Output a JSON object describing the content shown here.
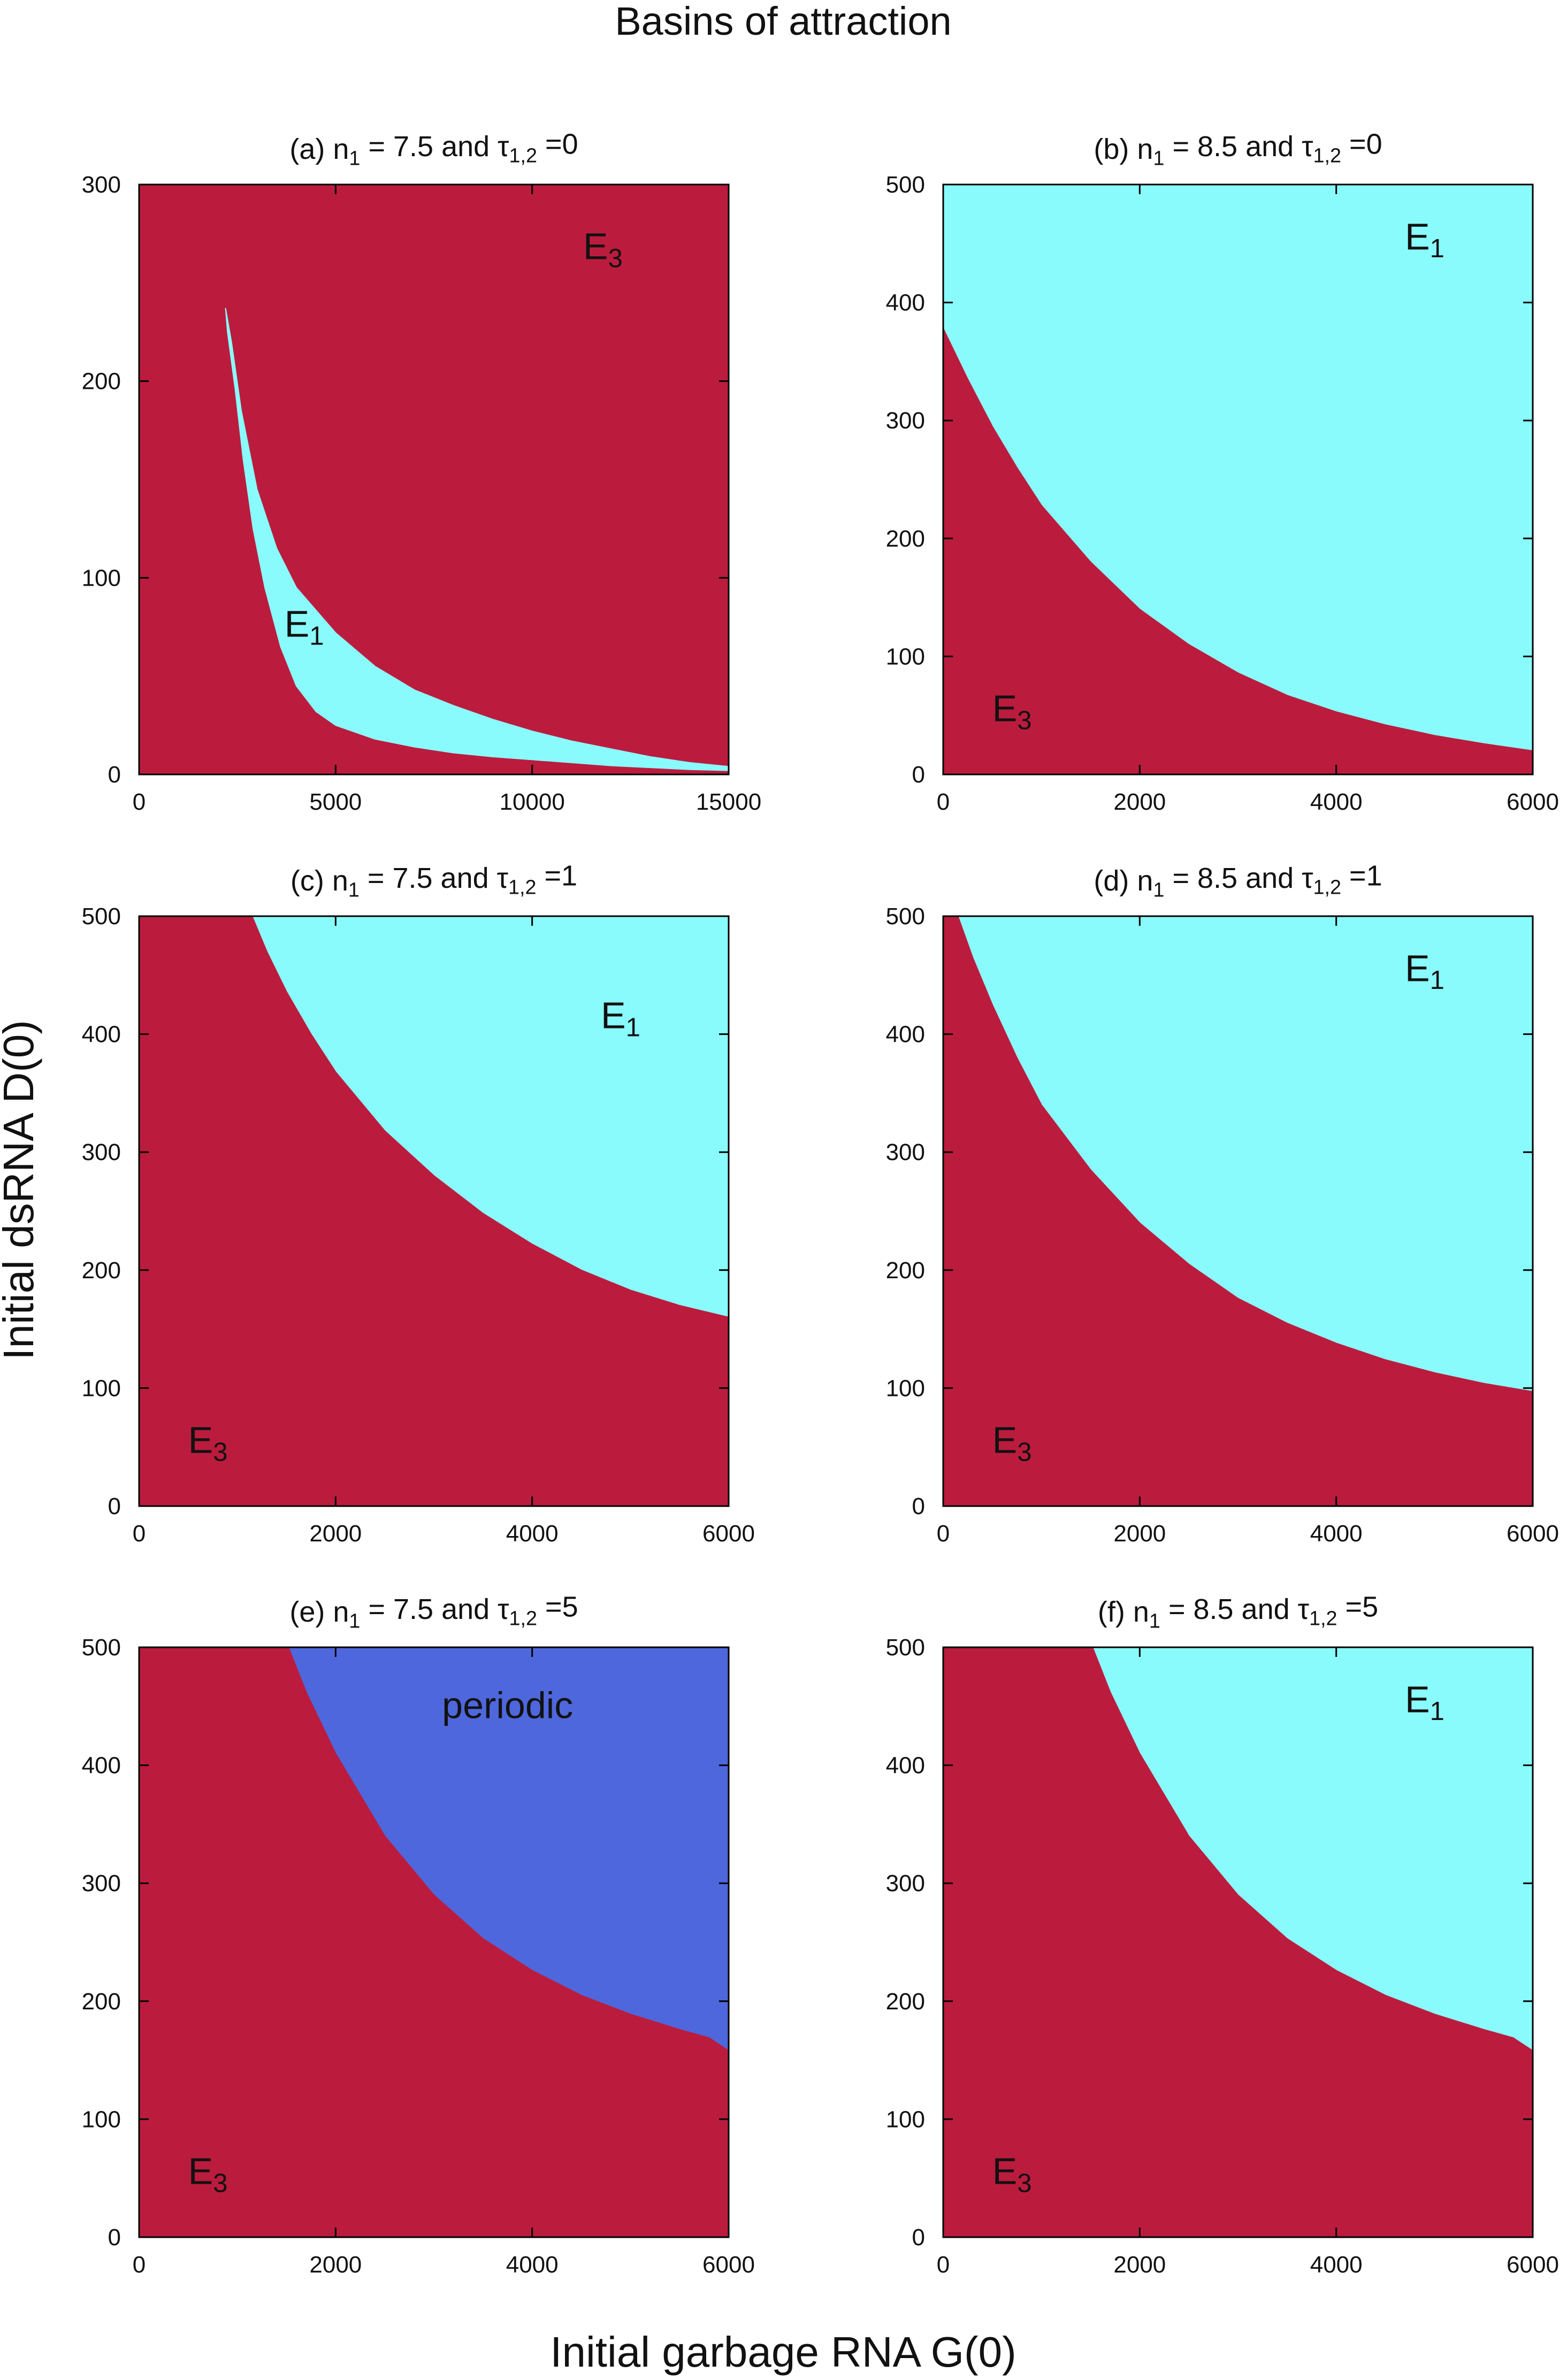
{
  "figure": {
    "title": "Basins of attraction",
    "xlabel": "Initial garbage RNA G(0)",
    "ylabel": "Initial dsRNA D(0)"
  },
  "colors": {
    "E3": "#bb1c3e",
    "E1": "#8afbfc",
    "periodic": "#4e67dc",
    "axis": "#000000"
  },
  "chart_data": [
    {
      "type": "area",
      "id": "a",
      "title": {
        "pre": "(a) n",
        "sub1": "1",
        "mid": " = 7.5 and τ",
        "sub2": "1,2",
        "post": " =0"
      },
      "xlim": [
        0,
        15000
      ],
      "ylim": [
        0,
        300
      ],
      "xticks": [
        0,
        5000,
        10000,
        15000
      ],
      "yticks": [
        0,
        100,
        200,
        300
      ],
      "background": {
        "name": "E3",
        "color": "#bb1c3e"
      },
      "regions": [
        {
          "name": "E1",
          "color": "#8afbfc",
          "shape": "crescent",
          "outer": [
            [
              2200,
              237
            ],
            [
              2350,
              220
            ],
            [
              2600,
              185
            ],
            [
              3000,
              145
            ],
            [
              3500,
              115
            ],
            [
              4000,
              95
            ],
            [
              5000,
              72
            ],
            [
              6000,
              55
            ],
            [
              7000,
              43
            ],
            [
              8000,
              35
            ],
            [
              9000,
              28
            ],
            [
              10000,
              22
            ],
            [
              11000,
              17
            ],
            [
              12000,
              13
            ],
            [
              13000,
              9
            ],
            [
              14000,
              6
            ],
            [
              15000,
              4
            ]
          ],
          "inner": [
            [
              15000,
              2
            ],
            [
              14000,
              2.5
            ],
            [
              13000,
              3.5
            ],
            [
              12000,
              4.5
            ],
            [
              11000,
              6
            ],
            [
              10000,
              7.5
            ],
            [
              9000,
              9
            ],
            [
              8000,
              11
            ],
            [
              7000,
              14
            ],
            [
              6000,
              18
            ],
            [
              5000,
              25
            ],
            [
              4500,
              32
            ],
            [
              4000,
              45
            ],
            [
              3600,
              65
            ],
            [
              3200,
              95
            ],
            [
              2900,
              125
            ],
            [
              2650,
              160
            ],
            [
              2450,
              195
            ],
            [
              2250,
              225
            ],
            [
              2200,
              237
            ]
          ]
        }
      ],
      "labels": [
        {
          "text": "E",
          "sub": "3",
          "at": [
            11800,
            262
          ]
        },
        {
          "text": "E",
          "sub": "1",
          "at": [
            4200,
            70
          ]
        }
      ]
    },
    {
      "type": "area",
      "id": "b",
      "title": {
        "pre": "(b) n",
        "sub1": "1",
        "mid": " = 8.5 and τ",
        "sub2": "1,2",
        "post": " =0"
      },
      "xlim": [
        0,
        6000
      ],
      "ylim": [
        0,
        500
      ],
      "xticks": [
        0,
        2000,
        4000,
        6000
      ],
      "yticks": [
        0,
        100,
        200,
        300,
        400,
        500
      ],
      "background": {
        "name": "E1",
        "color": "#8afbfc"
      },
      "regions": [
        {
          "name": "E3",
          "color": "#bb1c3e",
          "shape": "below-curve",
          "boundary": [
            [
              0,
              378
            ],
            [
              250,
              335
            ],
            [
              500,
              295
            ],
            [
              750,
              260
            ],
            [
              1000,
              228
            ],
            [
              1500,
              180
            ],
            [
              2000,
              140
            ],
            [
              2500,
              110
            ],
            [
              3000,
              86
            ],
            [
              3500,
              67
            ],
            [
              4000,
              53
            ],
            [
              4500,
              42
            ],
            [
              5000,
              33
            ],
            [
              5500,
              26
            ],
            [
              6000,
              20
            ]
          ]
        }
      ],
      "labels": [
        {
          "text": "E",
          "sub": "1",
          "at": [
            4900,
            445
          ]
        },
        {
          "text": "E",
          "sub": "3",
          "at": [
            700,
            45
          ]
        }
      ]
    },
    {
      "type": "area",
      "id": "c",
      "title": {
        "pre": "(c) n",
        "sub1": "1",
        "mid": " = 7.5 and τ",
        "sub2": "1,2",
        "post": " =1"
      },
      "xlim": [
        0,
        6000
      ],
      "ylim": [
        0,
        500
      ],
      "xticks": [
        0,
        2000,
        4000,
        6000
      ],
      "yticks": [
        0,
        100,
        200,
        300,
        400,
        500
      ],
      "background": {
        "name": "E1",
        "color": "#8afbfc"
      },
      "regions": [
        {
          "name": "E3",
          "color": "#bb1c3e",
          "shape": "below-curve",
          "boundary": [
            [
              0,
              500
            ],
            [
              1150,
              500
            ],
            [
              1300,
              470
            ],
            [
              1500,
              436
            ],
            [
              1750,
              400
            ],
            [
              2000,
              368
            ],
            [
              2500,
              318
            ],
            [
              3000,
              280
            ],
            [
              3500,
              248
            ],
            [
              4000,
              222
            ],
            [
              4500,
              200
            ],
            [
              5000,
              183
            ],
            [
              5500,
              170
            ],
            [
              6000,
              160
            ]
          ]
        }
      ],
      "labels": [
        {
          "text": "E",
          "sub": "1",
          "at": [
            4900,
            405
          ]
        },
        {
          "text": "E",
          "sub": "3",
          "at": [
            700,
            45
          ]
        }
      ]
    },
    {
      "type": "area",
      "id": "d",
      "title": {
        "pre": "(d) n",
        "sub1": "1",
        "mid": " = 8.5 and τ",
        "sub2": "1,2",
        "post": " =1"
      },
      "xlim": [
        0,
        6000
      ],
      "ylim": [
        0,
        500
      ],
      "xticks": [
        0,
        2000,
        4000,
        6000
      ],
      "yticks": [
        0,
        100,
        200,
        300,
        400,
        500
      ],
      "background": {
        "name": "E1",
        "color": "#8afbfc"
      },
      "regions": [
        {
          "name": "E3",
          "color": "#bb1c3e",
          "shape": "below-curve",
          "boundary": [
            [
              0,
              500
            ],
            [
              150,
              500
            ],
            [
              300,
              465
            ],
            [
              500,
              425
            ],
            [
              750,
              380
            ],
            [
              1000,
              340
            ],
            [
              1500,
              285
            ],
            [
              2000,
              240
            ],
            [
              2500,
              205
            ],
            [
              3000,
              176
            ],
            [
              3500,
              155
            ],
            [
              4000,
              138
            ],
            [
              4500,
              124
            ],
            [
              5000,
              113
            ],
            [
              5500,
              104
            ],
            [
              6000,
              97
            ]
          ]
        }
      ],
      "labels": [
        {
          "text": "E",
          "sub": "1",
          "at": [
            4900,
            445
          ]
        },
        {
          "text": "E",
          "sub": "3",
          "at": [
            700,
            45
          ]
        }
      ]
    },
    {
      "type": "area",
      "id": "e",
      "title": {
        "pre": "(e) n",
        "sub1": "1",
        "mid": " = 7.5 and τ",
        "sub2": "1,2",
        "post": " =5"
      },
      "xlim": [
        0,
        6000
      ],
      "ylim": [
        0,
        500
      ],
      "xticks": [
        0,
        2000,
        4000,
        6000
      ],
      "yticks": [
        0,
        100,
        200,
        300,
        400,
        500
      ],
      "background": {
        "name": "periodic",
        "color": "#4e67dc"
      },
      "regions": [
        {
          "name": "E3",
          "color": "#bb1c3e",
          "shape": "below-curve",
          "boundary": [
            [
              0,
              500
            ],
            [
              1520,
              500
            ],
            [
              1700,
              462
            ],
            [
              2000,
              410
            ],
            [
              2500,
              340
            ],
            [
              3000,
              290
            ],
            [
              3500,
              253
            ],
            [
              4000,
              226
            ],
            [
              4500,
              205
            ],
            [
              5000,
              189
            ],
            [
              5500,
              176
            ],
            [
              5800,
              169
            ],
            [
              6000,
              158
            ]
          ]
        }
      ],
      "labels": [
        {
          "text": "periodic",
          "sub": "",
          "at": [
            3750,
            440
          ]
        },
        {
          "text": "E",
          "sub": "3",
          "at": [
            700,
            45
          ]
        }
      ]
    },
    {
      "type": "area",
      "id": "f",
      "title": {
        "pre": "(f) n",
        "sub1": "1",
        "mid": " = 8.5 and τ",
        "sub2": "1,2",
        "post": " =5"
      },
      "xlim": [
        0,
        6000
      ],
      "ylim": [
        0,
        500
      ],
      "xticks": [
        0,
        2000,
        4000,
        6000
      ],
      "yticks": [
        0,
        100,
        200,
        300,
        400,
        500
      ],
      "background": {
        "name": "E1",
        "color": "#8afbfc"
      },
      "regions": [
        {
          "name": "E3",
          "color": "#bb1c3e",
          "shape": "below-curve",
          "boundary": [
            [
              0,
              500
            ],
            [
              1520,
              500
            ],
            [
              1700,
              462
            ],
            [
              2000,
              410
            ],
            [
              2500,
              340
            ],
            [
              3000,
              290
            ],
            [
              3500,
              253
            ],
            [
              4000,
              226
            ],
            [
              4500,
              205
            ],
            [
              5000,
              189
            ],
            [
              5500,
              176
            ],
            [
              5800,
              169
            ],
            [
              6000,
              158
            ]
          ]
        }
      ],
      "labels": [
        {
          "text": "E",
          "sub": "1",
          "at": [
            4900,
            445
          ]
        },
        {
          "text": "E",
          "sub": "3",
          "at": [
            700,
            45
          ]
        }
      ]
    }
  ]
}
